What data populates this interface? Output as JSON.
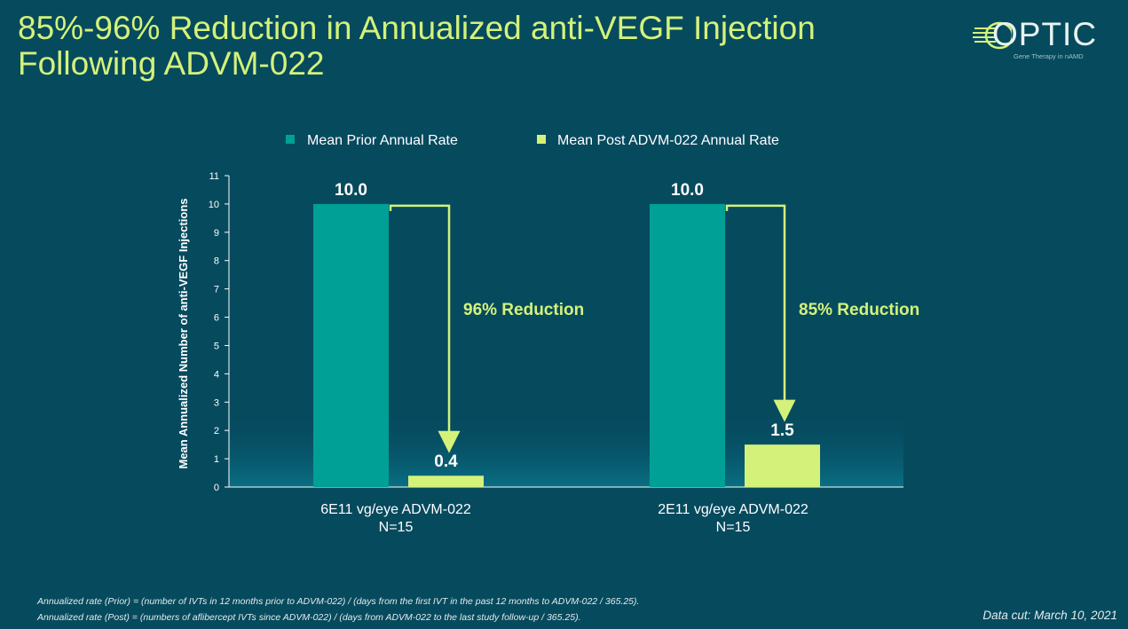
{
  "slide": {
    "title_line1": "85%-96% Reduction in Annualized anti-VEGF Injection",
    "title_line2": "Following ADVM-022",
    "logo": {
      "name": "OPTIC",
      "tagline": "Gene Therapy in nAMD"
    },
    "footnote1": "Annualized rate (Prior) = (number of IVTs in 12 months prior to ADVM-022) / (days from the first IVT in the past 12 months to ADVM-022 / 365.25).",
    "footnote2": "Annualized rate (Post) = (numbers  of aflibercept IVTs since ADVM-022) / (days from ADVM-022 to the last study follow-up / 365.25).",
    "data_cut": "Data cut: March 10, 2021"
  },
  "colors": {
    "background": "#064a5e",
    "prior_bar": "#00a096",
    "post_bar": "#d4f27a",
    "title": "#d4f27a",
    "arrow": "#d4f27a",
    "text": "#ffffff"
  },
  "chart_data": {
    "type": "bar",
    "ylabel": "Mean Annualized Number of anti-VEGF Injections",
    "ylim": [
      0,
      11
    ],
    "yticks": [
      0,
      1,
      2,
      3,
      4,
      5,
      6,
      7,
      8,
      9,
      10,
      11
    ],
    "legend_position": "top",
    "categories": [
      [
        "6E11 vg/eye ADVM-022",
        "N=15"
      ],
      [
        "2E11 vg/eye ADVM-022",
        "N=15"
      ]
    ],
    "series": [
      {
        "name": "Mean Prior Annual Rate",
        "values": [
          10.0,
          10.0
        ],
        "labels": [
          "10.0",
          "10.0"
        ]
      },
      {
        "name": "Mean Post ADVM-022 Annual Rate",
        "values": [
          0.4,
          1.5
        ],
        "labels": [
          "0.4",
          "1.5"
        ]
      }
    ],
    "annotations": [
      "96% Reduction",
      "85% Reduction"
    ]
  }
}
